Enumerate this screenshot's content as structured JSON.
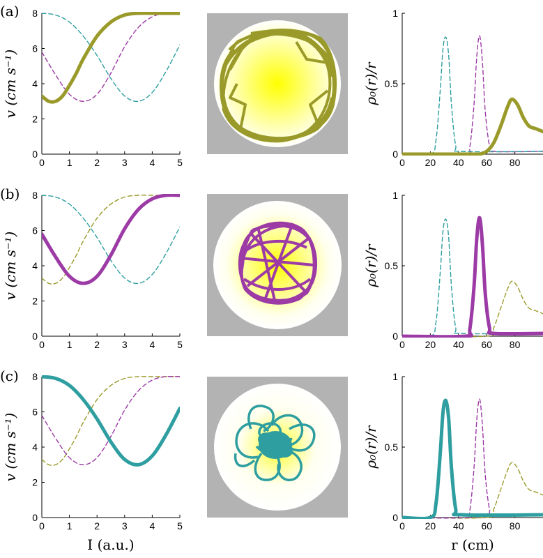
{
  "colors": {
    "olive": "#9a9a2a",
    "purple": "#9c3aa6",
    "teal": "#2e9ea0",
    "gray_bg": "#b3b3b3",
    "light_center": "#ffff00"
  },
  "panels": [
    {
      "label": "(a)"
    },
    {
      "label": "(b)"
    },
    {
      "label": "(c)"
    }
  ],
  "chart_data": [
    {
      "type": "line",
      "panel": "(a) left",
      "ylabel": "v (cm s⁻¹)",
      "xlabel": "",
      "xlim": [
        0,
        5
      ],
      "ylim": [
        0,
        8
      ],
      "xticks": [
        "0",
        "1",
        "2",
        "3",
        "4",
        "5"
      ],
      "yticks": [
        "0",
        "2",
        "4",
        "6",
        "8"
      ],
      "series": [
        {
          "color": "#9a9a2a",
          "style": "solid",
          "x": [
            0,
            0.25,
            0.5,
            0.75,
            1,
            1.25,
            1.5,
            2,
            2.5,
            3,
            3.5,
            4,
            4.5,
            5
          ],
          "y": [
            3.3,
            3.0,
            3.0,
            3.3,
            3.9,
            4.6,
            5.4,
            6.7,
            7.5,
            7.9,
            8,
            8,
            8,
            8
          ]
        },
        {
          "color": "#9c3aa6",
          "style": "dashed",
          "x": [
            0,
            0.5,
            1,
            1.5,
            2,
            2.5,
            3,
            3.5,
            4,
            4.5,
            5
          ],
          "y": [
            5.8,
            4.5,
            3.4,
            3.0,
            3.4,
            4.6,
            6.1,
            7.2,
            7.8,
            8,
            8
          ]
        },
        {
          "color": "#2e9ea0",
          "style": "dashed",
          "x": [
            0,
            0.5,
            1,
            1.5,
            2,
            2.5,
            3,
            3.5,
            4,
            4.5,
            5
          ],
          "y": [
            8,
            7.9,
            7.5,
            6.7,
            5.6,
            4.3,
            3.3,
            3.0,
            3.5,
            4.7,
            6.2
          ]
        }
      ]
    },
    {
      "type": "line",
      "panel": "(a) right",
      "ylabel": "ρ₀(r)/r",
      "xlabel": "",
      "xlim": [
        0,
        100
      ],
      "ylim": [
        0,
        1
      ],
      "xticks": [
        "0",
        "20",
        "40",
        "60",
        "80"
      ],
      "yticks": [
        "0",
        "0.5",
        "1"
      ],
      "series": [
        {
          "color": "#9a9a2a",
          "style": "solid",
          "x": [
            0,
            50,
            55,
            60,
            65,
            70,
            75,
            78,
            82,
            86,
            90,
            95,
            100
          ],
          "y": [
            0,
            0,
            0,
            0.02,
            0.08,
            0.2,
            0.34,
            0.39,
            0.35,
            0.26,
            0.2,
            0.18,
            0.16
          ]
        },
        {
          "color": "#9c3aa6",
          "style": "dashed",
          "x": [
            0,
            45,
            48,
            51,
            53,
            55,
            57,
            59,
            62,
            65,
            100
          ],
          "y": [
            0,
            0,
            0.05,
            0.35,
            0.7,
            0.84,
            0.65,
            0.3,
            0.06,
            0.02,
            0.02
          ]
        },
        {
          "color": "#2e9ea0",
          "style": "dashed",
          "x": [
            0,
            20,
            24,
            27,
            29,
            31,
            33,
            35,
            38,
            42,
            100
          ],
          "y": [
            0,
            0,
            0.1,
            0.45,
            0.75,
            0.83,
            0.7,
            0.35,
            0.06,
            0.02,
            0.02
          ]
        }
      ]
    },
    {
      "type": "line",
      "panel": "(b) left",
      "ylabel": "v (cm s⁻¹)",
      "xlabel": "",
      "xlim": [
        0,
        5
      ],
      "ylim": [
        0,
        8
      ],
      "xticks": [
        "0",
        "1",
        "2",
        "3",
        "4",
        "5"
      ],
      "yticks": [
        "0",
        "2",
        "4",
        "6",
        "8"
      ],
      "series": [
        {
          "color": "#9a9a2a",
          "style": "dashed",
          "x": [
            0,
            0.25,
            0.5,
            0.75,
            1,
            1.25,
            1.5,
            2,
            2.5,
            3,
            3.5,
            4,
            4.5,
            5
          ],
          "y": [
            3.3,
            3.0,
            3.0,
            3.3,
            3.9,
            4.6,
            5.4,
            6.7,
            7.5,
            7.9,
            8,
            8,
            8,
            8
          ]
        },
        {
          "color": "#9c3aa6",
          "style": "solid",
          "x": [
            0,
            0.5,
            1,
            1.5,
            2,
            2.5,
            3,
            3.5,
            4,
            4.5,
            5
          ],
          "y": [
            5.8,
            4.5,
            3.4,
            3.0,
            3.4,
            4.6,
            6.1,
            7.2,
            7.8,
            8,
            8
          ]
        },
        {
          "color": "#2e9ea0",
          "style": "dashed",
          "x": [
            0,
            0.5,
            1,
            1.5,
            2,
            2.5,
            3,
            3.5,
            4,
            4.5,
            5
          ],
          "y": [
            8,
            7.9,
            7.5,
            6.7,
            5.6,
            4.3,
            3.3,
            3.0,
            3.5,
            4.7,
            6.2
          ]
        }
      ]
    },
    {
      "type": "line",
      "panel": "(b) right",
      "ylabel": "ρ₀(r)/r",
      "xlabel": "",
      "xlim": [
        0,
        100
      ],
      "ylim": [
        0,
        1
      ],
      "xticks": [
        "0",
        "20",
        "40",
        "60",
        "80"
      ],
      "yticks": [
        "0",
        "0.5",
        "1"
      ],
      "series": [
        {
          "color": "#9a9a2a",
          "style": "dashed",
          "x": [
            0,
            60,
            65,
            70,
            75,
            78,
            82,
            86,
            90,
            95,
            100
          ],
          "y": [
            0,
            0,
            0.06,
            0.2,
            0.34,
            0.39,
            0.35,
            0.26,
            0.2,
            0.18,
            0.16
          ]
        },
        {
          "color": "#9c3aa6",
          "style": "solid",
          "x": [
            0,
            45,
            48,
            51,
            53,
            55,
            57,
            59,
            62,
            65,
            100
          ],
          "y": [
            0,
            0,
            0.05,
            0.35,
            0.7,
            0.84,
            0.65,
            0.3,
            0.06,
            0.02,
            0.02
          ]
        },
        {
          "color": "#2e9ea0",
          "style": "dashed",
          "x": [
            0,
            20,
            24,
            27,
            29,
            31,
            33,
            35,
            38,
            42,
            100
          ],
          "y": [
            0,
            0,
            0.1,
            0.45,
            0.75,
            0.83,
            0.7,
            0.35,
            0.06,
            0.02,
            0.02
          ]
        }
      ]
    },
    {
      "type": "line",
      "panel": "(c) left",
      "ylabel": "v (cm s⁻¹)",
      "xlabel": "I (a.u.)",
      "xlim": [
        0,
        5
      ],
      "ylim": [
        0,
        8
      ],
      "xticks": [
        "0",
        "1",
        "2",
        "3",
        "4",
        "5"
      ],
      "yticks": [
        "0",
        "2",
        "4",
        "6",
        "8"
      ],
      "series": [
        {
          "color": "#9a9a2a",
          "style": "dashed",
          "x": [
            0,
            0.25,
            0.5,
            0.75,
            1,
            1.25,
            1.5,
            2,
            2.5,
            3,
            3.5,
            4,
            4.5,
            5
          ],
          "y": [
            3.3,
            3.0,
            3.0,
            3.3,
            3.9,
            4.6,
            5.4,
            6.7,
            7.5,
            7.9,
            8,
            8,
            8,
            8
          ]
        },
        {
          "color": "#9c3aa6",
          "style": "dashed",
          "x": [
            0,
            0.5,
            1,
            1.5,
            2,
            2.5,
            3,
            3.5,
            4,
            4.5,
            5
          ],
          "y": [
            5.8,
            4.5,
            3.4,
            3.0,
            3.4,
            4.6,
            6.1,
            7.2,
            7.8,
            8,
            8
          ]
        },
        {
          "color": "#2e9ea0",
          "style": "solid",
          "x": [
            0,
            0.5,
            1,
            1.5,
            2,
            2.5,
            3,
            3.5,
            4,
            4.5,
            5
          ],
          "y": [
            8,
            7.9,
            7.5,
            6.7,
            5.6,
            4.3,
            3.3,
            3.0,
            3.5,
            4.7,
            6.2
          ]
        }
      ]
    },
    {
      "type": "line",
      "panel": "(c) right",
      "ylabel": "ρ₀(r)/r",
      "xlabel": "r (cm)",
      "xlim": [
        0,
        100
      ],
      "ylim": [
        0,
        1
      ],
      "xticks": [
        "0",
        "20",
        "40",
        "60",
        "80"
      ],
      "yticks": [
        "0",
        "0.5",
        "1"
      ],
      "series": [
        {
          "color": "#9a9a2a",
          "style": "dashed",
          "x": [
            0,
            60,
            65,
            70,
            75,
            78,
            82,
            86,
            90,
            95,
            100
          ],
          "y": [
            0,
            0,
            0.06,
            0.2,
            0.34,
            0.39,
            0.35,
            0.26,
            0.2,
            0.18,
            0.16
          ]
        },
        {
          "color": "#9c3aa6",
          "style": "dashed",
          "x": [
            0,
            45,
            48,
            51,
            53,
            55,
            57,
            59,
            62,
            65,
            100
          ],
          "y": [
            0,
            0,
            0.05,
            0.35,
            0.7,
            0.84,
            0.65,
            0.3,
            0.06,
            0.02,
            0.02
          ]
        },
        {
          "color": "#2e9ea0",
          "style": "solid",
          "x": [
            0,
            20,
            24,
            27,
            29,
            31,
            33,
            35,
            38,
            42,
            100
          ],
          "y": [
            0,
            0,
            0.1,
            0.45,
            0.75,
            0.83,
            0.7,
            0.35,
            0.06,
            0.02,
            0.02
          ]
        }
      ]
    }
  ]
}
